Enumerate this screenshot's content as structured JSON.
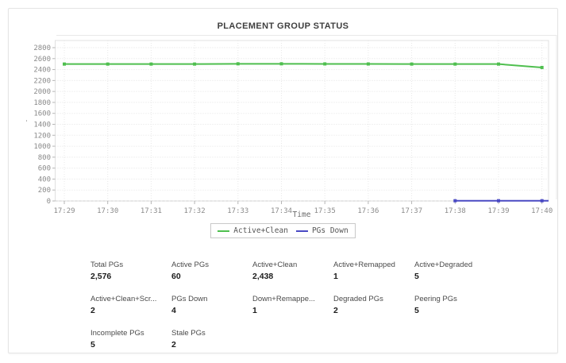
{
  "chart_data": {
    "type": "line",
    "title": "PLACEMENT GROUP STATUS",
    "xlabel": "Time",
    "ylabel": "",
    "y_axis_mark": "'",
    "x": [
      "17:29",
      "17:30",
      "17:31",
      "17:32",
      "17:33",
      "17:34",
      "17:35",
      "17:36",
      "17:37",
      "17:38",
      "17:39",
      "17:40"
    ],
    "ylim": [
      0,
      2800
    ],
    "yticks": [
      0,
      200,
      400,
      600,
      800,
      1000,
      1200,
      1400,
      1600,
      1800,
      2000,
      2200,
      2400,
      2600,
      2800
    ],
    "grid": true,
    "legend_position": "bottom",
    "series": [
      {
        "name": "Active+Clean",
        "color": "#4fbf4f",
        "values": [
          2500,
          2500,
          2500,
          2500,
          2505,
          2505,
          2503,
          2502,
          2500,
          2500,
          2500,
          2438
        ],
        "extend_to_edge": false
      },
      {
        "name": "PGs Down",
        "color": "#4a4ac4",
        "values": [
          null,
          null,
          null,
          null,
          null,
          null,
          null,
          null,
          null,
          4,
          4,
          4
        ],
        "extend_to_edge": true
      }
    ]
  },
  "stats": {
    "rows": [
      [
        {
          "label": "Total PGs",
          "value": "2,576"
        },
        {
          "label": "Active PGs",
          "value": "60"
        },
        {
          "label": "Active+Clean",
          "value": "2,438"
        },
        {
          "label": "Active+Remapped",
          "value": "1"
        },
        {
          "label": "Active+Degraded",
          "value": "5"
        }
      ],
      [
        {
          "label": "Active+Clean+Scr...",
          "value": "2"
        },
        {
          "label": "PGs Down",
          "value": "4"
        },
        {
          "label": "Down+Remappe...",
          "value": "1"
        },
        {
          "label": "Degraded PGs",
          "value": "2"
        },
        {
          "label": "Peering PGs",
          "value": "5"
        }
      ],
      [
        {
          "label": "Incomplete PGs",
          "value": "5"
        },
        {
          "label": "Stale PGs",
          "value": "2"
        }
      ]
    ]
  }
}
